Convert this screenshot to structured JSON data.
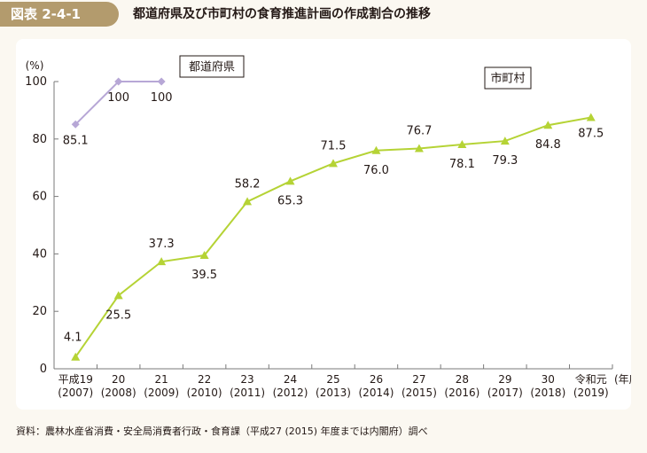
{
  "header": {
    "figure_label": "図表 2-4-1",
    "title": "都道府県及び市町村の食育推進計画の作成割合の推移"
  },
  "source_note": "資料：農林水産省消費・安全局消費者行政・食育課（平成27 (2015) 年度までは内閣府）調べ",
  "colors": {
    "prefecture": "#b7a7d6",
    "municipality": "#b5d335",
    "label_bg": "#b39b6d",
    "panel_bg": "#ffffff",
    "page_bg": "#fbf8f1"
  },
  "chart_data": {
    "type": "line",
    "title": "",
    "ylabel": "(%)",
    "xlabel_suffix": "(年度)",
    "ylim": [
      0,
      100
    ],
    "yticks": [
      0,
      20,
      40,
      60,
      80,
      100
    ],
    "categories": [
      "平成19",
      "20",
      "21",
      "22",
      "23",
      "24",
      "25",
      "26",
      "27",
      "28",
      "29",
      "30",
      "令和元"
    ],
    "categories_year": [
      "(2007)",
      "(2008)",
      "(2009)",
      "(2010)",
      "(2011)",
      "(2012)",
      "(2013)",
      "(2014)",
      "(2015)",
      "(2016)",
      "(2017)",
      "(2018)",
      "(2019)"
    ],
    "series": [
      {
        "name": "都道府県",
        "marker": "diamond",
        "values": [
          85.1,
          100,
          100,
          null,
          null,
          null,
          null,
          null,
          null,
          null,
          null,
          null,
          null
        ],
        "labels": [
          "85.1",
          "100",
          "100"
        ]
      },
      {
        "name": "市町村",
        "marker": "triangle",
        "values": [
          4.1,
          25.5,
          37.3,
          39.5,
          58.2,
          65.3,
          71.5,
          76.0,
          76.7,
          78.1,
          79.3,
          84.8,
          87.5
        ],
        "labels": [
          "4.1",
          "25.5",
          "37.3",
          "39.5",
          "58.2",
          "65.3",
          "71.5",
          "76.0",
          "76.7",
          "78.1",
          "79.3",
          "84.8",
          "87.5"
        ]
      }
    ],
    "grid": false
  }
}
